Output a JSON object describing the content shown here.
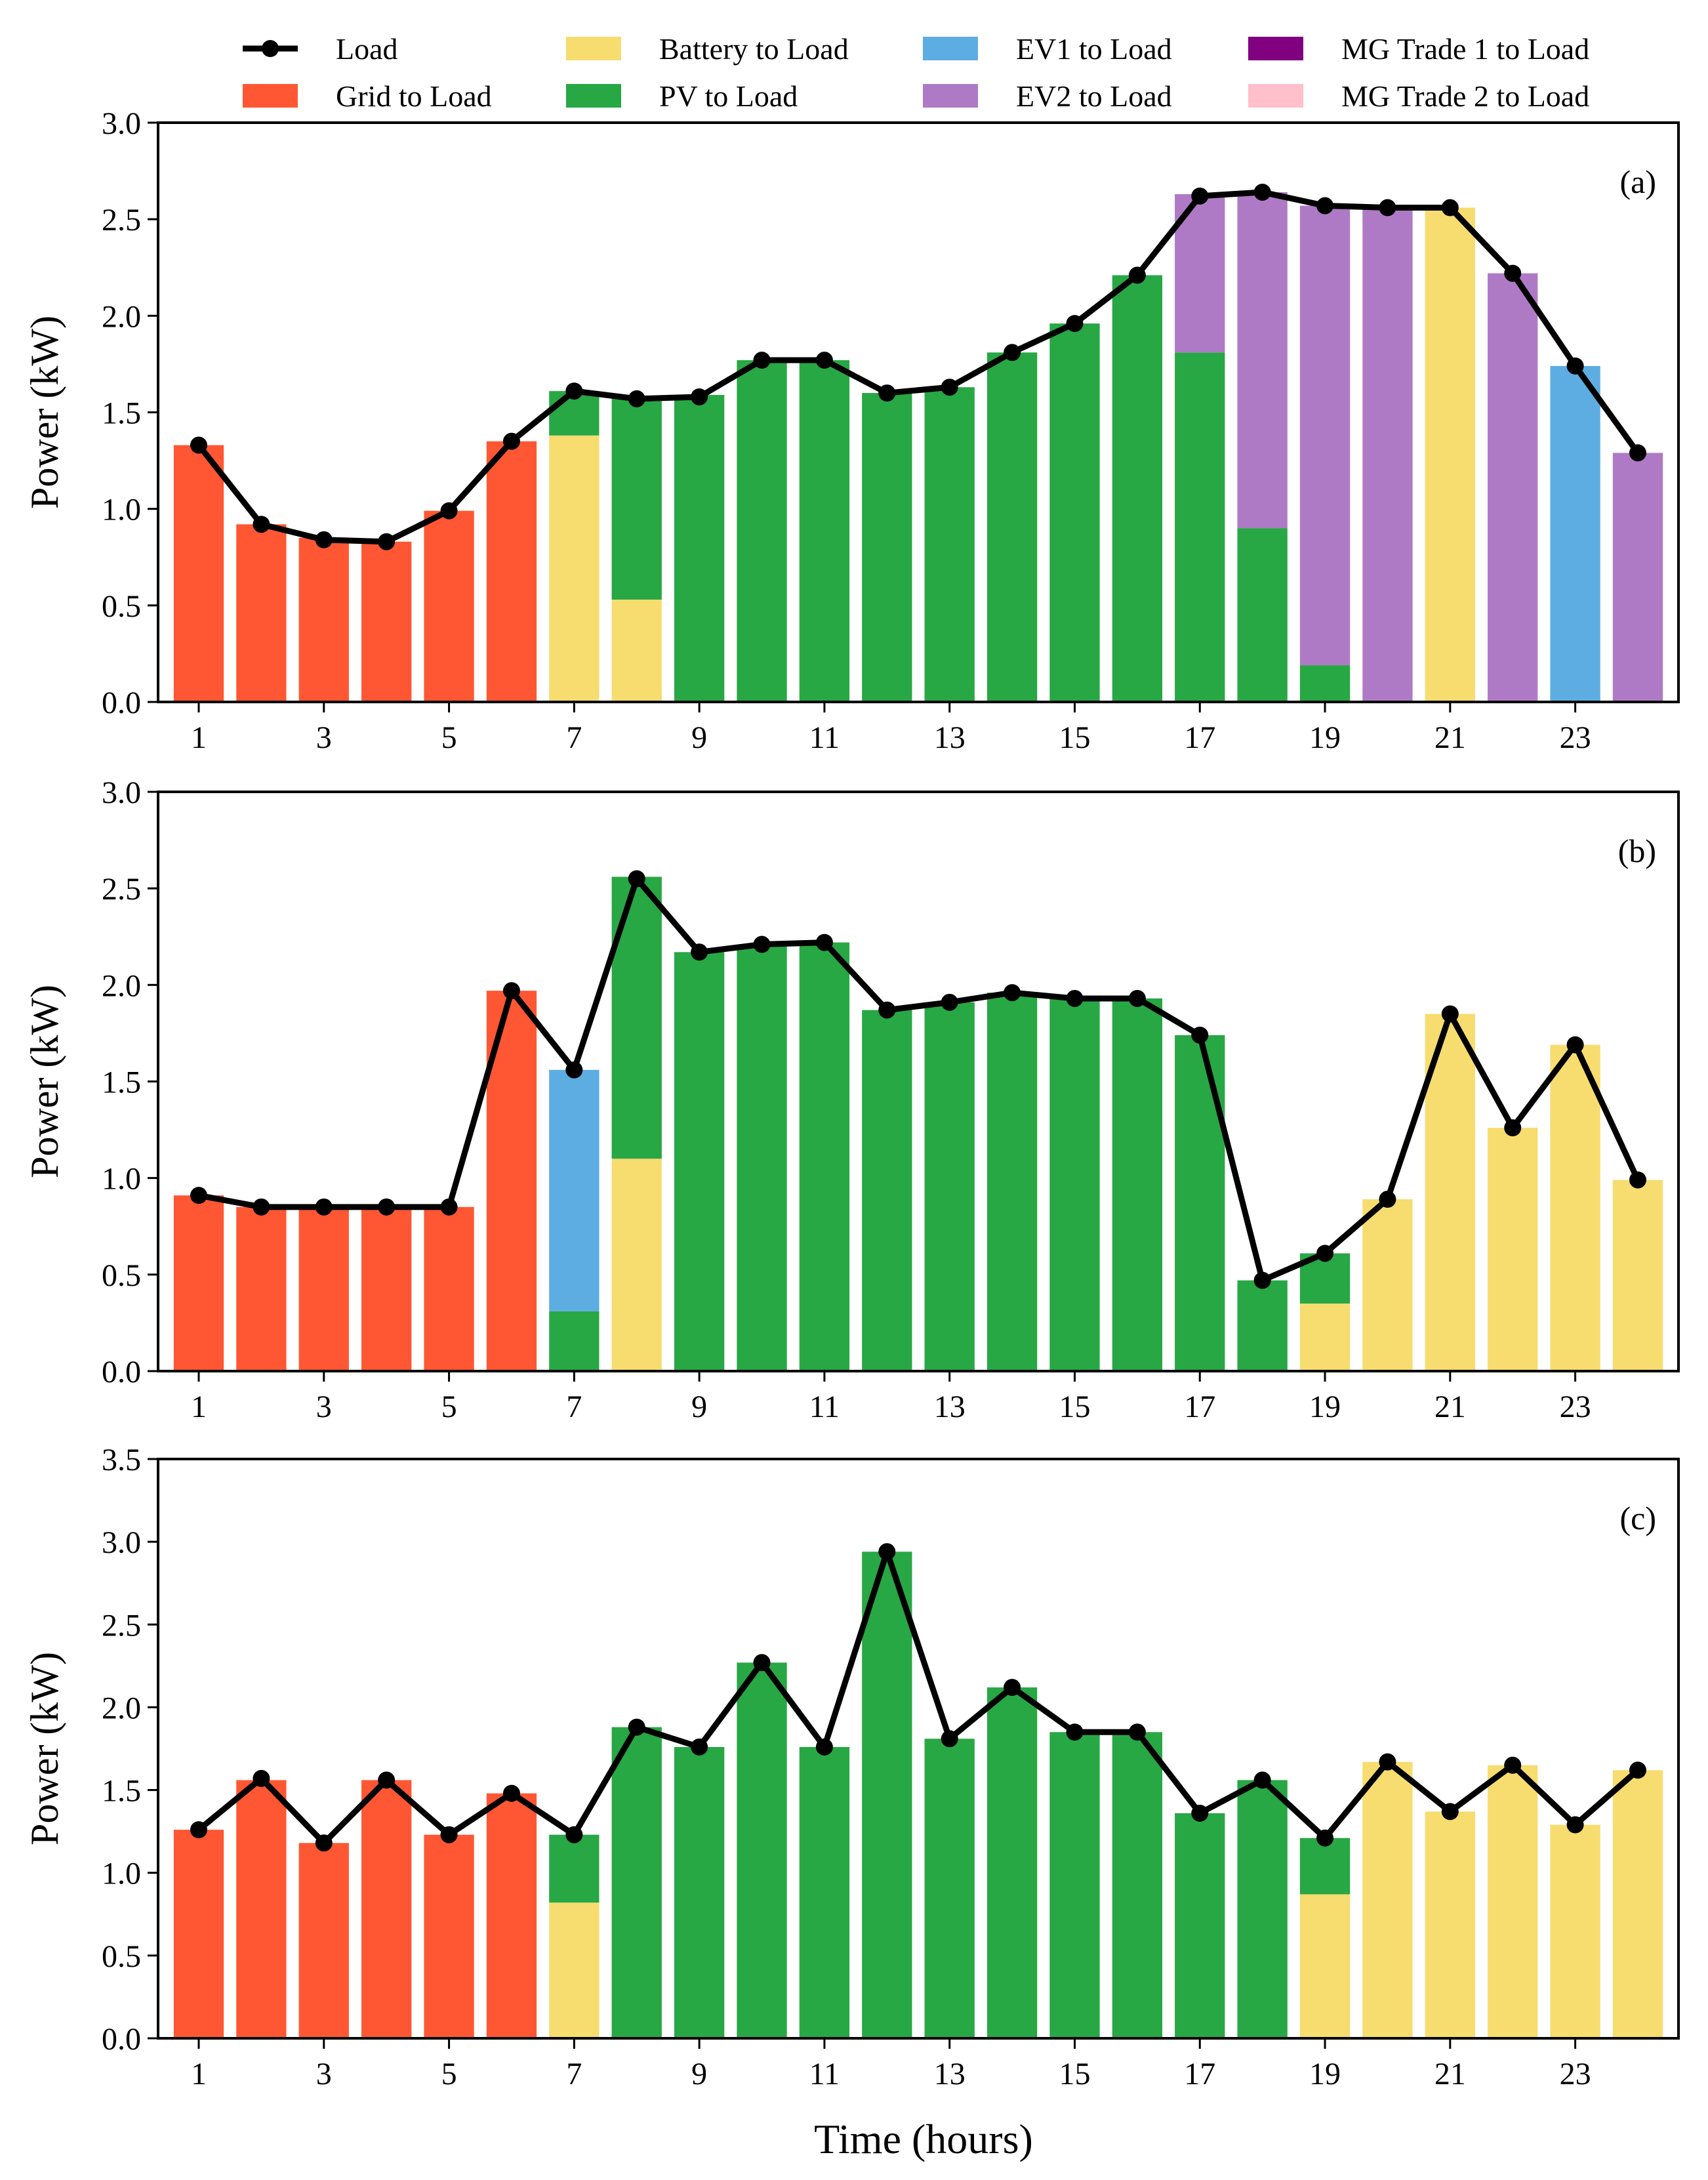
{
  "legend": {
    "items": [
      {
        "label": "Load",
        "kind": "line",
        "color": "#000000"
      },
      {
        "label": "Grid to Load",
        "kind": "patch",
        "color": "#FF5733"
      },
      {
        "label": "Battery to Load",
        "kind": "patch",
        "color": "#F7DC6F"
      },
      {
        "label": "PV to Load",
        "kind": "patch",
        "color": "#28A745"
      },
      {
        "label": "EV1 to Load",
        "kind": "patch",
        "color": "#5DADE2"
      },
      {
        "label": "EV2 to Load",
        "kind": "patch",
        "color": "#AF7AC5"
      },
      {
        "label": "MG Trade 1 to Load",
        "kind": "patch",
        "color": "#800080"
      },
      {
        "label": "MG Trade 2 to Load",
        "kind": "patch",
        "color": "#FFC0CB"
      }
    ]
  },
  "xlabel": "Time (hours)",
  "chart_data": [
    {
      "type": "bar",
      "panel_label": "(a)",
      "ylabel": "Power (kW)",
      "ylim": [
        0,
        3.0
      ],
      "yticks": [
        "0.0",
        "0.5",
        "1.0",
        "1.5",
        "2.0",
        "2.5",
        "3.0"
      ],
      "x": [
        1,
        2,
        3,
        4,
        5,
        6,
        7,
        8,
        9,
        10,
        11,
        12,
        13,
        14,
        15,
        16,
        17,
        18,
        19,
        20,
        21,
        22,
        23,
        24
      ],
      "xticks": [
        "1",
        "3",
        "5",
        "7",
        "9",
        "11",
        "13",
        "15",
        "17",
        "19",
        "21",
        "23"
      ],
      "stacked": true,
      "series": [
        {
          "name": "Grid to Load",
          "color": "#FF5733",
          "values": [
            1.33,
            0.92,
            0.85,
            0.83,
            0.99,
            1.35,
            0,
            0,
            0,
            0,
            0,
            0,
            0,
            0,
            0,
            0,
            0,
            0,
            0,
            0,
            0,
            0,
            0,
            0
          ]
        },
        {
          "name": "Battery to Load",
          "color": "#F7DC6F",
          "values": [
            0,
            0,
            0,
            0,
            0,
            0,
            1.38,
            0.53,
            0,
            0,
            0,
            0,
            0,
            0,
            0,
            0,
            0,
            0,
            0,
            0,
            2.56,
            0,
            0,
            0
          ]
        },
        {
          "name": "PV to Load",
          "color": "#28A745",
          "values": [
            0,
            0,
            0,
            0,
            0,
            0,
            0.23,
            1.05,
            1.59,
            1.77,
            1.77,
            1.6,
            1.63,
            1.81,
            1.96,
            2.21,
            1.81,
            0.9,
            0.19,
            0,
            0,
            0,
            0,
            0
          ]
        },
        {
          "name": "EV1 to Load",
          "color": "#5DADE2",
          "values": [
            0,
            0,
            0,
            0,
            0,
            0,
            0,
            0,
            0,
            0,
            0,
            0,
            0,
            0,
            0,
            0,
            0,
            0,
            0,
            0,
            0,
            0,
            1.74,
            0
          ]
        },
        {
          "name": "EV2 to Load",
          "color": "#AF7AC5",
          "values": [
            0,
            0,
            0,
            0,
            0,
            0,
            0,
            0,
            0,
            0,
            0,
            0,
            0,
            0,
            0,
            0,
            0.82,
            1.74,
            2.38,
            2.56,
            0,
            2.22,
            0,
            1.29
          ]
        },
        {
          "name": "MG Trade 1 to Load",
          "color": "#800080",
          "values": [
            0,
            0,
            0,
            0,
            0,
            0,
            0,
            0,
            0,
            0,
            0,
            0,
            0,
            0,
            0,
            0,
            0,
            0,
            0,
            0,
            0,
            0,
            0,
            0
          ]
        },
        {
          "name": "MG Trade 2 to Load",
          "color": "#FFC0CB",
          "values": [
            0,
            0,
            0,
            0,
            0,
            0,
            0,
            0,
            0,
            0,
            0,
            0,
            0,
            0,
            0,
            0,
            0,
            0,
            0,
            0,
            0,
            0,
            0,
            0
          ]
        }
      ],
      "load": [
        1.33,
        0.92,
        0.84,
        0.83,
        0.99,
        1.35,
        1.61,
        1.57,
        1.58,
        1.77,
        1.77,
        1.6,
        1.63,
        1.81,
        1.96,
        2.21,
        2.62,
        2.64,
        2.57,
        2.56,
        2.56,
        2.22,
        1.74,
        1.29
      ]
    },
    {
      "type": "bar",
      "panel_label": "(b)",
      "ylabel": "Power (kW)",
      "ylim": [
        0,
        3.0
      ],
      "yticks": [
        "0.0",
        "0.5",
        "1.0",
        "1.5",
        "2.0",
        "2.5",
        "3.0"
      ],
      "x": [
        1,
        2,
        3,
        4,
        5,
        6,
        7,
        8,
        9,
        10,
        11,
        12,
        13,
        14,
        15,
        16,
        17,
        18,
        19,
        20,
        21,
        22,
        23,
        24
      ],
      "xticks": [
        "1",
        "3",
        "5",
        "7",
        "9",
        "11",
        "13",
        "15",
        "17",
        "19",
        "21",
        "23"
      ],
      "stacked": true,
      "series": [
        {
          "name": "Grid to Load",
          "color": "#FF5733",
          "values": [
            0.91,
            0.85,
            0.85,
            0.85,
            0.85,
            1.97,
            0,
            0,
            0,
            0,
            0,
            0,
            0,
            0,
            0,
            0,
            0,
            0,
            0,
            0,
            0,
            0,
            0,
            0
          ]
        },
        {
          "name": "Battery to Load",
          "color": "#F7DC6F",
          "values": [
            0,
            0,
            0,
            0,
            0,
            0,
            0,
            1.1,
            0,
            0,
            0,
            0,
            0,
            0,
            0,
            0,
            0,
            0,
            0.35,
            0.89,
            1.85,
            1.26,
            1.69,
            0.99
          ]
        },
        {
          "name": "PV to Load",
          "color": "#28A745",
          "values": [
            0,
            0,
            0,
            0,
            0,
            0,
            0.31,
            1.46,
            2.17,
            2.21,
            2.22,
            1.87,
            1.91,
            1.96,
            1.93,
            1.93,
            1.74,
            0.47,
            0.26,
            0,
            0,
            0,
            0,
            0
          ]
        },
        {
          "name": "EV1 to Load",
          "color": "#5DADE2",
          "values": [
            0,
            0,
            0,
            0,
            0,
            0,
            1.25,
            0,
            0,
            0,
            0,
            0,
            0,
            0,
            0,
            0,
            0,
            0,
            0,
            0,
            0,
            0,
            0,
            0
          ]
        },
        {
          "name": "EV2 to Load",
          "color": "#AF7AC5",
          "values": [
            0,
            0,
            0,
            0,
            0,
            0,
            0,
            0,
            0,
            0,
            0,
            0,
            0,
            0,
            0,
            0,
            0,
            0,
            0,
            0,
            0,
            0,
            0,
            0
          ]
        },
        {
          "name": "MG Trade 1 to Load",
          "color": "#800080",
          "values": [
            0,
            0,
            0,
            0,
            0,
            0,
            0,
            0,
            0,
            0,
            0,
            0,
            0,
            0,
            0,
            0,
            0,
            0,
            0,
            0,
            0,
            0,
            0,
            0
          ]
        },
        {
          "name": "MG Trade 2 to Load",
          "color": "#FFC0CB",
          "values": [
            0,
            0,
            0,
            0,
            0,
            0,
            0,
            0,
            0,
            0,
            0,
            0,
            0,
            0,
            0,
            0,
            0,
            0,
            0,
            0,
            0,
            0,
            0,
            0
          ]
        }
      ],
      "load": [
        0.91,
        0.85,
        0.85,
        0.85,
        0.85,
        1.97,
        1.56,
        2.55,
        2.17,
        2.21,
        2.22,
        1.87,
        1.91,
        1.96,
        1.93,
        1.93,
        1.74,
        0.47,
        0.61,
        0.89,
        1.85,
        1.26,
        1.69,
        0.99
      ]
    },
    {
      "type": "bar",
      "panel_label": "(c)",
      "ylabel": "Power (kW)",
      "ylim": [
        0,
        3.5
      ],
      "yticks": [
        "0.0",
        "0.5",
        "1.0",
        "1.5",
        "2.0",
        "2.5",
        "3.0",
        "3.5"
      ],
      "x": [
        1,
        2,
        3,
        4,
        5,
        6,
        7,
        8,
        9,
        10,
        11,
        12,
        13,
        14,
        15,
        16,
        17,
        18,
        19,
        20,
        21,
        22,
        23,
        24
      ],
      "xticks": [
        "1",
        "3",
        "5",
        "7",
        "9",
        "11",
        "13",
        "15",
        "17",
        "19",
        "21",
        "23"
      ],
      "stacked": true,
      "series": [
        {
          "name": "Grid to Load",
          "color": "#FF5733",
          "values": [
            1.26,
            1.56,
            1.18,
            1.56,
            1.23,
            1.48,
            0,
            0,
            0,
            0,
            0,
            0,
            0,
            0,
            0,
            0,
            0,
            0,
            0,
            0,
            0,
            0,
            0,
            0
          ]
        },
        {
          "name": "Battery to Load",
          "color": "#F7DC6F",
          "values": [
            0,
            0,
            0,
            0,
            0,
            0,
            0.82,
            0,
            0,
            0,
            0,
            0,
            0,
            0,
            0,
            0,
            0,
            0,
            0.87,
            1.67,
            1.37,
            1.65,
            1.29,
            1.62
          ]
        },
        {
          "name": "PV to Load",
          "color": "#28A745",
          "values": [
            0,
            0,
            0,
            0,
            0,
            0,
            0.41,
            1.88,
            1.76,
            2.27,
            1.76,
            2.94,
            1.81,
            2.12,
            1.85,
            1.85,
            1.36,
            1.56,
            0.34,
            0,
            0,
            0,
            0,
            0
          ]
        },
        {
          "name": "EV1 to Load",
          "color": "#5DADE2",
          "values": [
            0,
            0,
            0,
            0,
            0,
            0,
            0,
            0,
            0,
            0,
            0,
            0,
            0,
            0,
            0,
            0,
            0,
            0,
            0,
            0,
            0,
            0,
            0,
            0
          ]
        },
        {
          "name": "EV2 to Load",
          "color": "#AF7AC5",
          "values": [
            0,
            0,
            0,
            0,
            0,
            0,
            0,
            0,
            0,
            0,
            0,
            0,
            0,
            0,
            0,
            0,
            0,
            0,
            0,
            0,
            0,
            0,
            0,
            0
          ]
        },
        {
          "name": "MG Trade 1 to Load",
          "color": "#800080",
          "values": [
            0,
            0,
            0,
            0,
            0,
            0,
            0,
            0,
            0,
            0,
            0,
            0,
            0,
            0,
            0,
            0,
            0,
            0,
            0,
            0,
            0,
            0,
            0,
            0
          ]
        },
        {
          "name": "MG Trade 2 to Load",
          "color": "#FFC0CB",
          "values": [
            0,
            0,
            0,
            0,
            0,
            0,
            0,
            0,
            0,
            0,
            0,
            0,
            0,
            0,
            0,
            0,
            0,
            0,
            0,
            0,
            0,
            0,
            0,
            0
          ]
        }
      ],
      "load": [
        1.26,
        1.57,
        1.18,
        1.56,
        1.23,
        1.48,
        1.23,
        1.88,
        1.76,
        2.27,
        1.76,
        2.94,
        1.81,
        2.12,
        1.85,
        1.85,
        1.36,
        1.56,
        1.21,
        1.67,
        1.37,
        1.65,
        1.29,
        1.62
      ]
    }
  ]
}
